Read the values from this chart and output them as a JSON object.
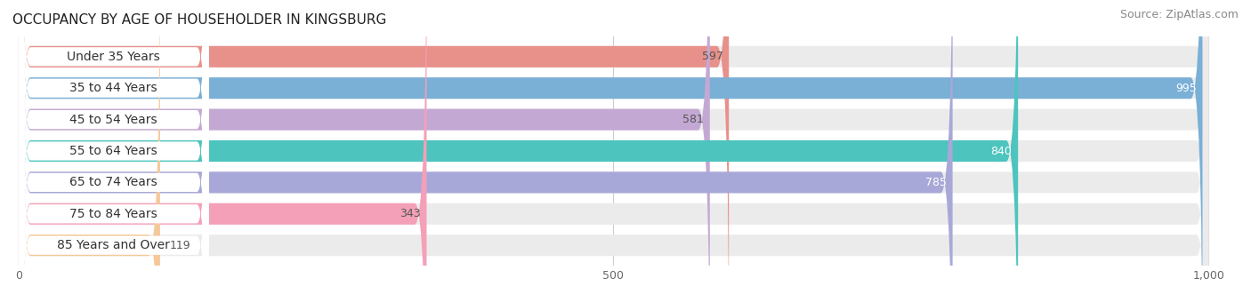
{
  "title": "OCCUPANCY BY AGE OF HOUSEHOLDER IN KINGSBURG",
  "source": "Source: ZipAtlas.com",
  "categories": [
    "Under 35 Years",
    "35 to 44 Years",
    "45 to 54 Years",
    "55 to 64 Years",
    "65 to 74 Years",
    "75 to 84 Years",
    "85 Years and Over"
  ],
  "values": [
    597,
    995,
    581,
    840,
    785,
    343,
    119
  ],
  "bar_colors": [
    "#E8908A",
    "#7AAFD6",
    "#C4A8D4",
    "#4DC4BE",
    "#A8A8D8",
    "#F4A0B8",
    "#F5C89A"
  ],
  "bar_bg_color": "#EBEBEB",
  "value_label_colors": [
    "#555555",
    "#ffffff",
    "#555555",
    "#ffffff",
    "#ffffff",
    "#555555",
    "#555555"
  ],
  "xlim_max": 1000,
  "xticks": [
    0,
    500,
    1000
  ],
  "background_color": "#ffffff",
  "title_fontsize": 11,
  "source_fontsize": 9,
  "label_fontsize": 10,
  "value_fontsize": 9,
  "figsize": [
    14.06,
    3.4
  ],
  "dpi": 100
}
